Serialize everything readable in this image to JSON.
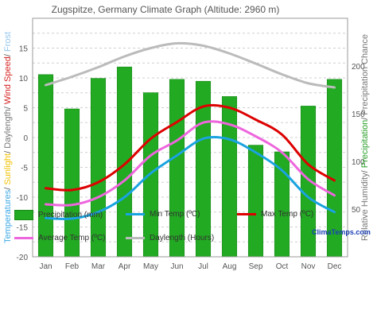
{
  "chart_data": {
    "type": "bar",
    "title": "Zugspitze, Germany Climate Graph (Altitude: 2960 m)",
    "categories": [
      "Jan",
      "Feb",
      "Mar",
      "Apr",
      "May",
      "Jun",
      "Jul",
      "Aug",
      "Sep",
      "Oct",
      "Nov",
      "Dec"
    ],
    "left_axis": {
      "ylim": [
        -20,
        20
      ],
      "ticks": [
        -20,
        -15,
        -10,
        -5,
        0,
        5,
        10,
        15
      ],
      "label_parts": [
        {
          "text": "Temperatures",
          "color": "#3aa7e6"
        },
        {
          "text": "/ ",
          "color": "#555555"
        },
        {
          "text": "Sunlight",
          "color": "#f2c000"
        },
        {
          "text": "/ ",
          "color": "#555555"
        },
        {
          "text": "Daylength",
          "color": "#777777"
        },
        {
          "text": "/ ",
          "color": "#555555"
        },
        {
          "text": "Wind Speed",
          "color": "#d62020"
        },
        {
          "text": "/ ",
          "color": "#555555"
        },
        {
          "text": "Frost",
          "color": "#8fc4ee"
        }
      ]
    },
    "right_axis": {
      "ylim": [
        0,
        250
      ],
      "ticks": [
        50,
        100,
        150,
        200
      ],
      "label_parts": [
        {
          "text": "Relative Humidity",
          "color": "#777777"
        },
        {
          "text": "/ ",
          "color": "#555555"
        },
        {
          "text": "Precipitation",
          "color": "#2aa02a"
        },
        {
          "text": "/ ",
          "color": "#555555"
        },
        {
          "text": "Precipitation Chance",
          "color": "#777777"
        }
      ]
    },
    "series": [
      {
        "name": "Precipitation (mm)",
        "type": "bar",
        "axis": "right",
        "color": "#22aa22",
        "values": [
          191,
          155,
          187,
          199,
          172,
          186,
          184,
          168,
          117,
          110,
          158,
          186
        ]
      },
      {
        "name": "Min Temp (ºC)",
        "type": "line",
        "axis": "left",
        "color": "#1aa3e0",
        "values": [
          -13.5,
          -13.6,
          -12.5,
          -10,
          -6,
          -3,
          -0.2,
          -0.3,
          -2.5,
          -5.5,
          -10,
          -12.5
        ]
      },
      {
        "name": "Max Temp (ºC)",
        "type": "line",
        "axis": "left",
        "color": "#dd0000",
        "values": [
          -8.5,
          -8.8,
          -7.5,
          -4.5,
          -0.2,
          2.6,
          5.2,
          5.0,
          3.0,
          0.5,
          -4.5,
          -7.2
        ]
      },
      {
        "name": "Average Temp (ºC)",
        "type": "line",
        "axis": "left",
        "color": "#ee66dd",
        "values": [
          -11.2,
          -11.3,
          -10.0,
          -7.2,
          -3.0,
          -0.5,
          2.5,
          2.2,
          0.2,
          -2.5,
          -7.0,
          -9.7
        ]
      },
      {
        "name": "Daylength (Hours)",
        "type": "line",
        "axis": "left",
        "color": "#bbbbbb",
        "values": [
          8.8,
          10.2,
          11.8,
          13.6,
          15.0,
          15.8,
          15.4,
          14.1,
          12.4,
          10.6,
          9.1,
          8.4
        ]
      }
    ],
    "grid": true,
    "legend_position": "bottom"
  },
  "brand": "ClimaTemps.com"
}
